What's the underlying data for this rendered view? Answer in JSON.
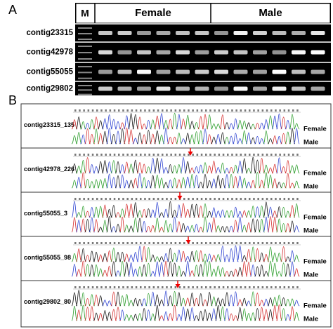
{
  "panel_a": {
    "label": "A",
    "header": {
      "marker": "M",
      "groups": [
        "Female",
        "Male"
      ]
    },
    "rows": [
      "contig23315",
      "contig42978",
      "contig55055",
      "contig29802"
    ]
  },
  "panel_b": {
    "label": "B",
    "panels": [
      {
        "name": "contig23315_135",
        "traces": [
          "Female",
          "Male"
        ]
      },
      {
        "name": "contig42978_226",
        "traces": [
          "Female",
          "Male"
        ]
      },
      {
        "name": "contig55055_3",
        "traces": [
          "Female",
          "Male"
        ]
      },
      {
        "name": "contig55055_98",
        "traces": [
          "Female",
          "Male"
        ]
      },
      {
        "name": "contig29802_80",
        "traces": [
          "Female",
          "Male"
        ]
      }
    ]
  }
}
